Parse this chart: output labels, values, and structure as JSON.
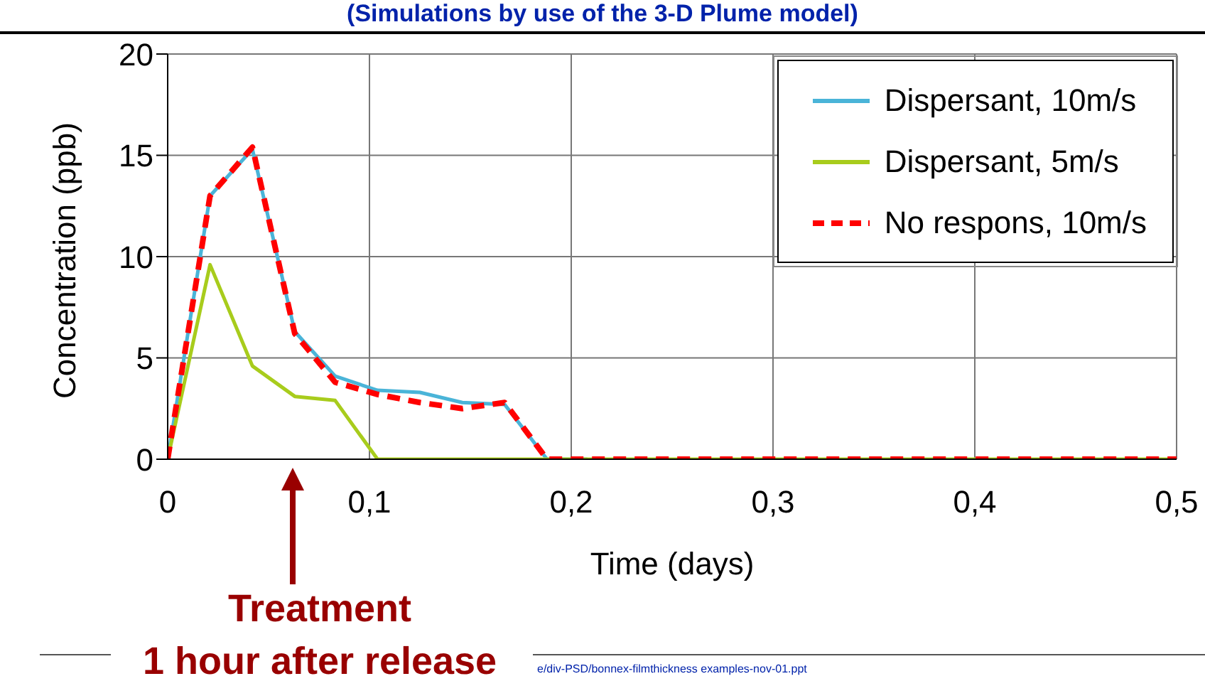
{
  "chart_data": {
    "type": "line",
    "title": "(Simulations by use of the 3-D Plume model)",
    "xlabel": "Time (days)",
    "ylabel": "Concentration (ppb)",
    "x": [
      0,
      0.021,
      0.042,
      0.063,
      0.083,
      0.104,
      0.125,
      0.146,
      0.167,
      0.188,
      0.208,
      0.25,
      0.3,
      0.35,
      0.4,
      0.45,
      0.5
    ],
    "series": [
      {
        "name": "Dispersant, 10m/s",
        "color": "#4ab4d8",
        "line_style": "solid",
        "values": [
          0,
          13,
          15.3,
          6.3,
          4.1,
          3.4,
          3.3,
          2.8,
          2.7,
          0,
          0,
          null,
          null,
          null,
          null,
          null,
          null
        ]
      },
      {
        "name": "Dispersant, 5m/s",
        "color": "#a8cc1c",
        "line_style": "solid",
        "values": [
          0,
          9.6,
          4.6,
          3.1,
          2.9,
          0,
          0,
          0,
          0,
          0,
          0,
          0,
          0,
          0,
          0,
          0,
          0
        ]
      },
      {
        "name": "No respons, 10m/s",
        "color": "#ff0000",
        "line_style": "dashed",
        "values": [
          0,
          13,
          15.4,
          6.2,
          3.8,
          3.2,
          2.8,
          2.5,
          2.8,
          0,
          0,
          0,
          0,
          0,
          0,
          0,
          0
        ]
      }
    ],
    "xlim": [
      0,
      0.5
    ],
    "xticks": [
      0,
      {
        "value": 0.1,
        "label": "0,1"
      },
      {
        "value": 0.2,
        "label": "0,2"
      },
      {
        "value": 0.3,
        "label": "0,3"
      },
      {
        "value": 0.4,
        "label": "0,4"
      },
      {
        "value": 0.5,
        "label": "0,5"
      }
    ],
    "ylim": [
      0,
      20
    ],
    "yticks": [
      0,
      5,
      10,
      15,
      20
    ],
    "grid": true,
    "legend": "top right",
    "marker": "none",
    "annotations": [
      "Treatment\n1 hour after release",
      "e/div-PSD/bonnex-filmthickness examples-nov-01.ppt"
    ]
  }
}
